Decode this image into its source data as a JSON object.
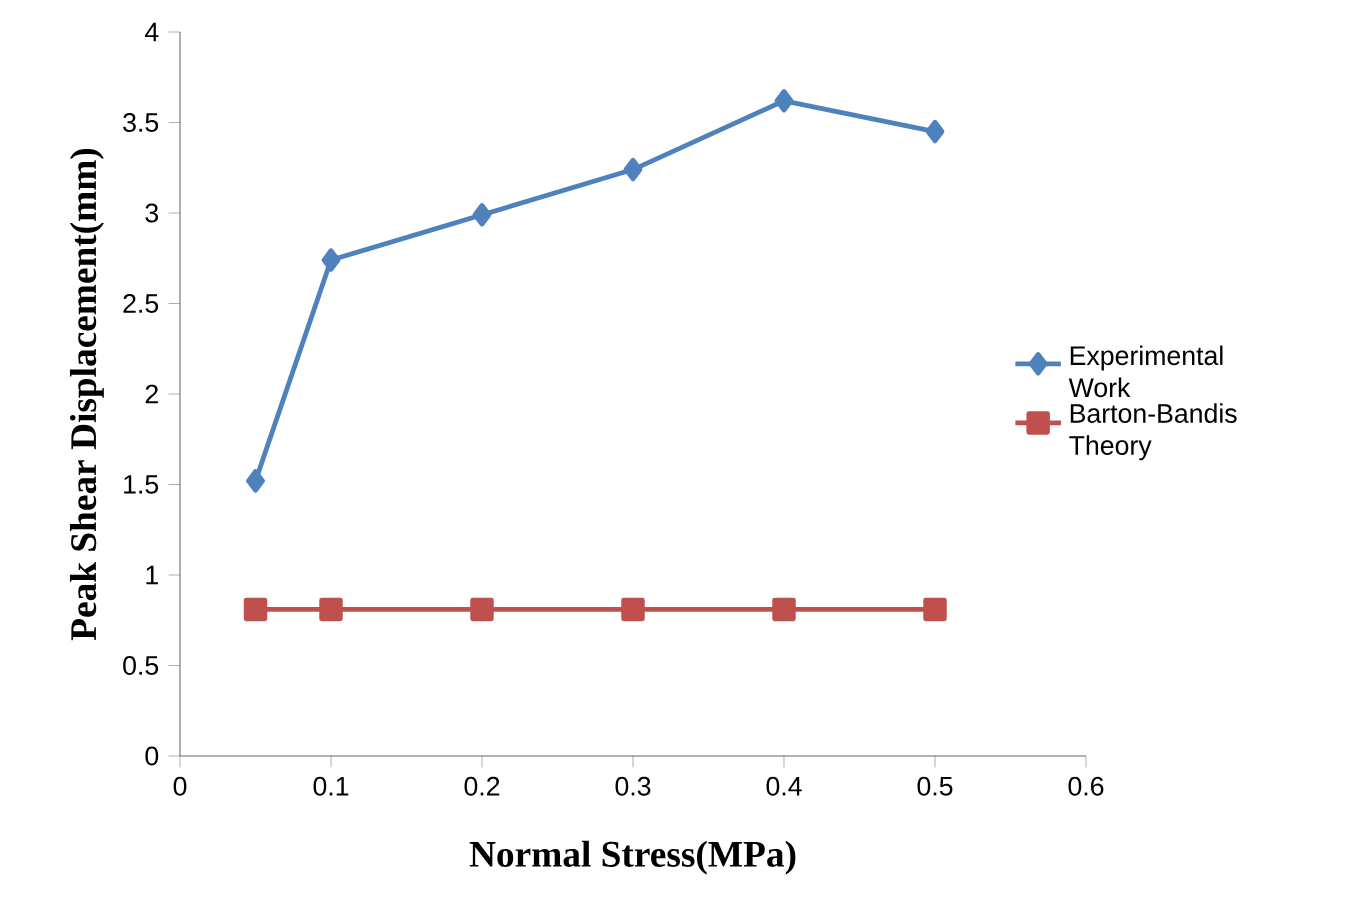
{
  "chart_data": {
    "type": "line",
    "xlabel": "Normal Stress(MPa)",
    "ylabel": "Peak Shear Displacement(mm)",
    "xlim": [
      0,
      0.6
    ],
    "xticks": [
      0,
      0.1,
      0.2,
      0.3,
      0.4,
      0.5,
      0.6
    ],
    "ylim": [
      0,
      4
    ],
    "yticks": [
      0,
      0.5,
      1,
      1.5,
      2,
      2.5,
      3,
      3.5,
      4
    ],
    "grid": false,
    "legend": "right",
    "line_style": "solid",
    "series": [
      {
        "name": "Experimental Work",
        "color": "#4f81bd",
        "marker": "diamond",
        "x": [
          0.05,
          0.1,
          0.2,
          0.3,
          0.4,
          0.5
        ],
        "values": [
          1.52,
          2.74,
          2.99,
          3.24,
          3.62,
          3.45
        ]
      },
      {
        "name": "Barton-Bandis Theory",
        "color": "#c0504d",
        "marker": "square",
        "x": [
          0.05,
          0.1,
          0.2,
          0.3,
          0.4,
          0.5
        ],
        "values": [
          0.81,
          0.81,
          0.81,
          0.81,
          0.81,
          0.81
        ]
      }
    ]
  }
}
